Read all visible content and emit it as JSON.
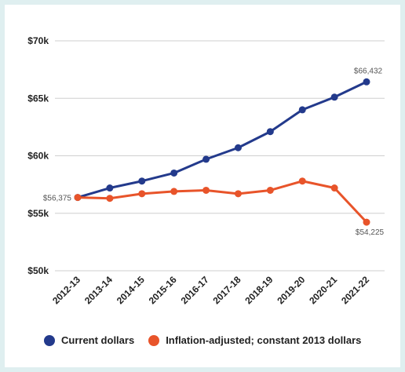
{
  "chart_data": {
    "type": "line",
    "categories": [
      "2012-13",
      "2013-14",
      "2014-15",
      "2015-16",
      "2016-17",
      "2017-18",
      "2018-19",
      "2019-20",
      "2020-21",
      "2021-22"
    ],
    "ylim": [
      50000,
      70000
    ],
    "yticks": [
      {
        "value": 50000,
        "label": "$50k"
      },
      {
        "value": 55000,
        "label": "$55k"
      },
      {
        "value": 60000,
        "label": "$60k"
      },
      {
        "value": 65000,
        "label": "$65k"
      },
      {
        "value": 70000,
        "label": "$70k"
      }
    ],
    "grid": true,
    "legend_position": "bottom",
    "series": [
      {
        "name": "Current dollars",
        "color": "#233a8c",
        "values": [
          56375,
          57200,
          57800,
          58500,
          59700,
          60700,
          62100,
          64000,
          65100,
          66432
        ]
      },
      {
        "name": "Inflation-adjusted; constant 2013 dollars",
        "color": "#e8542a",
        "values": [
          56375,
          56300,
          56700,
          56900,
          57000,
          56700,
          57000,
          57800,
          57200,
          54225
        ]
      }
    ],
    "annotations": [
      {
        "series": 0,
        "index": 9,
        "text": "$66,432"
      },
      {
        "series": 1,
        "index": 9,
        "text": "$54,225"
      },
      {
        "series": 0,
        "index": 0,
        "text": "$56,375"
      }
    ]
  }
}
